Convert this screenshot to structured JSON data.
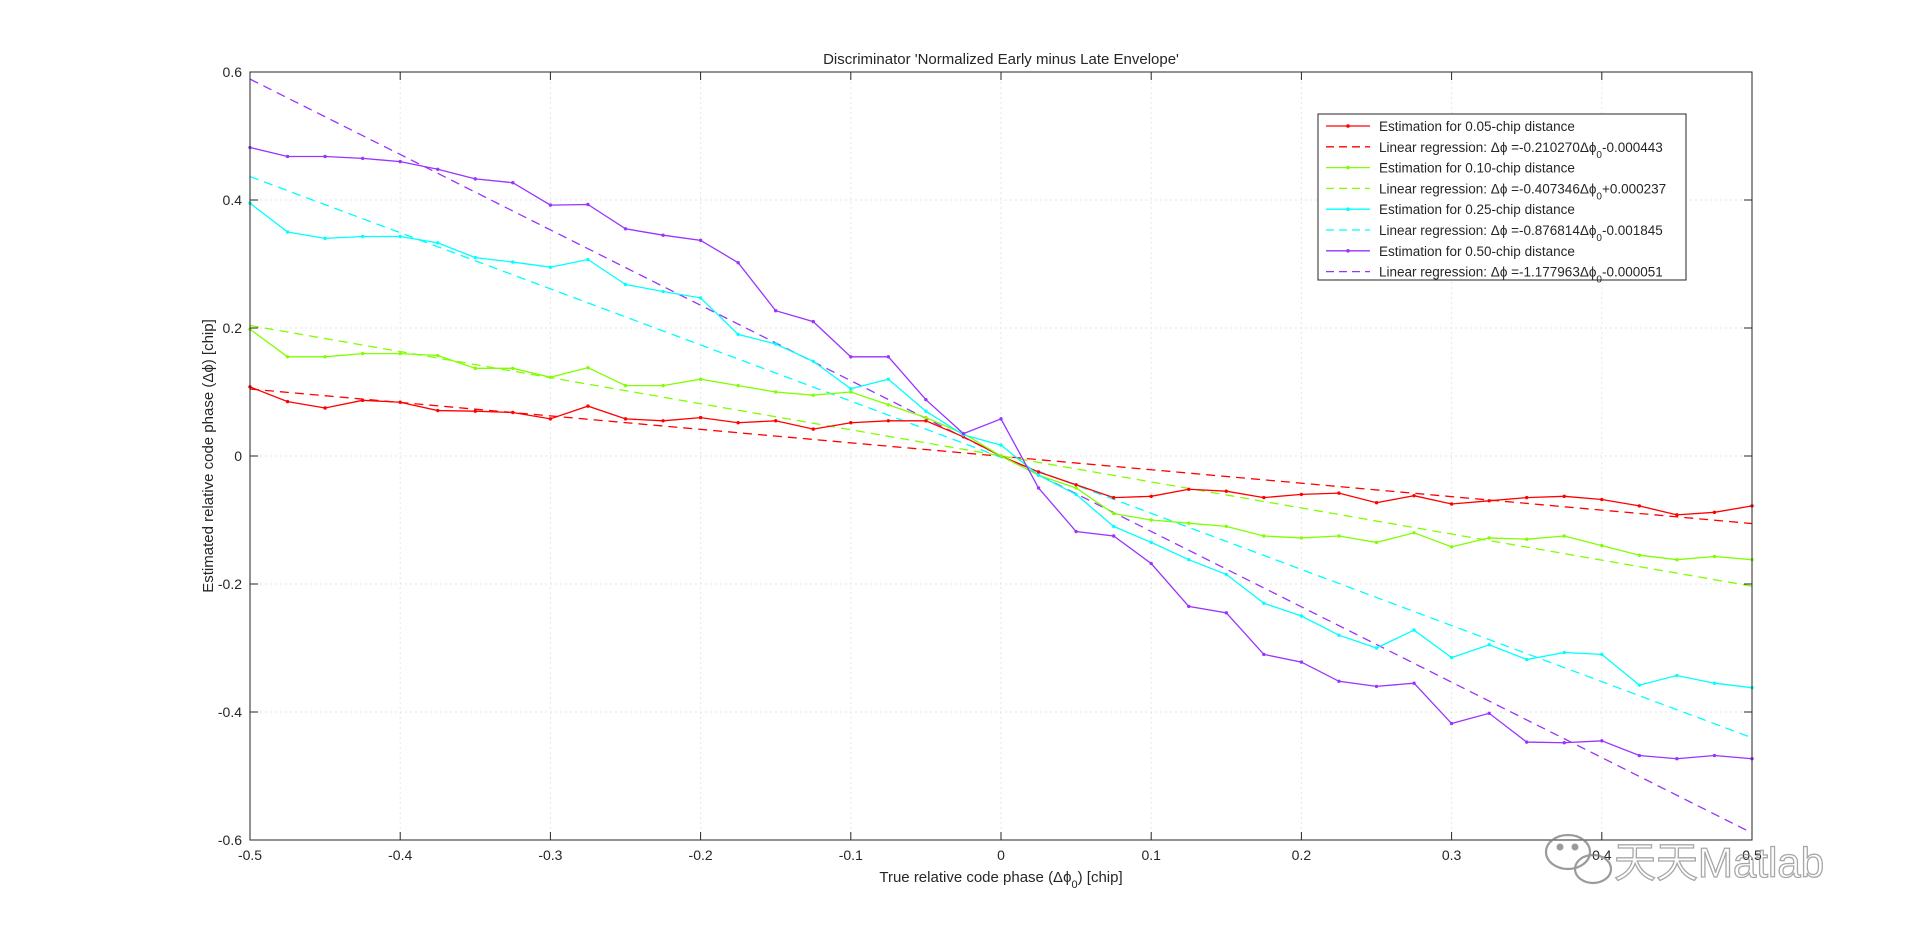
{
  "chart_data": {
    "type": "line",
    "title": "Discriminator 'Normalized Early minus Late Envelope'",
    "xlabel": {
      "prefix": "True relative code phase (Δϕ",
      "sub": "0",
      "suffix": ") [chip]"
    },
    "ylabel": "Estimated relative code phase (Δϕ) [chip]",
    "xlim": [
      -0.5,
      0.5
    ],
    "ylim": [
      -0.6,
      0.6
    ],
    "xticks": [
      -0.5,
      -0.4,
      -0.3,
      -0.2,
      -0.1,
      0,
      0.1,
      0.2,
      0.3,
      0.4,
      0.5
    ],
    "yticks": [
      -0.6,
      -0.4,
      -0.2,
      0,
      0.2,
      0.4,
      0.6
    ],
    "xtick_labels": [
      "-0.5",
      "-0.4",
      "-0.3",
      "-0.2",
      "-0.1",
      "0",
      "0.1",
      "0.2",
      "0.3",
      "0.4",
      "0.5"
    ],
    "ytick_labels": [
      "-0.6",
      "-0.4",
      "-0.2",
      "0",
      "0.2",
      "0.4",
      "0.6"
    ],
    "grid": true,
    "legend_position": "top-right",
    "x": [
      -0.5,
      -0.475,
      -0.45,
      -0.425,
      -0.4,
      -0.375,
      -0.35,
      -0.325,
      -0.3,
      -0.275,
      -0.25,
      -0.225,
      -0.2,
      -0.175,
      -0.15,
      -0.125,
      -0.1,
      -0.075,
      -0.05,
      -0.025,
      0,
      0.025,
      0.05,
      0.075,
      0.1,
      0.125,
      0.15,
      0.175,
      0.2,
      0.225,
      0.25,
      0.275,
      0.3,
      0.325,
      0.35,
      0.375,
      0.4,
      0.425,
      0.45,
      0.475,
      0.5
    ],
    "series": [
      {
        "name": "Estimation for 0.05-chip distance",
        "color": "#ff0000",
        "values": [
          0.108,
          0.085,
          0.075,
          0.087,
          0.084,
          0.071,
          0.07,
          0.068,
          0.058,
          0.078,
          0.058,
          0.055,
          0.06,
          0.052,
          0.055,
          0.042,
          0.052,
          0.055,
          0.055,
          0.03,
          0.0,
          -0.025,
          -0.045,
          -0.065,
          -0.063,
          -0.052,
          -0.055,
          -0.065,
          -0.06,
          -0.058,
          -0.073,
          -0.062,
          -0.075,
          -0.07,
          -0.065,
          -0.063,
          -0.068,
          -0.078,
          -0.092,
          -0.088,
          -0.078
        ]
      },
      {
        "name": "Estimation for 0.10-chip distance",
        "color": "#7fff00",
        "values": [
          0.198,
          0.155,
          0.155,
          0.16,
          0.16,
          0.157,
          0.137,
          0.137,
          0.123,
          0.138,
          0.11,
          0.11,
          0.12,
          0.11,
          0.1,
          0.095,
          0.1,
          0.08,
          0.06,
          0.035,
          0.0,
          -0.03,
          -0.05,
          -0.09,
          -0.1,
          -0.105,
          -0.11,
          -0.125,
          -0.128,
          -0.125,
          -0.135,
          -0.12,
          -0.142,
          -0.128,
          -0.13,
          -0.125,
          -0.14,
          -0.155,
          -0.162,
          -0.157,
          -0.162
        ]
      },
      {
        "name": "Estimation for 0.25-chip distance",
        "color": "#00ffff",
        "values": [
          0.395,
          0.35,
          0.34,
          0.343,
          0.343,
          0.333,
          0.31,
          0.303,
          0.295,
          0.307,
          0.268,
          0.257,
          0.247,
          0.19,
          0.175,
          0.148,
          0.105,
          0.12,
          0.07,
          0.033,
          0.017,
          -0.03,
          -0.06,
          -0.11,
          -0.135,
          -0.162,
          -0.185,
          -0.23,
          -0.25,
          -0.28,
          -0.3,
          -0.272,
          -0.315,
          -0.295,
          -0.318,
          -0.307,
          -0.31,
          -0.358,
          -0.343,
          -0.355,
          -0.362
        ]
      },
      {
        "name": "Estimation for 0.50-chip distance",
        "color": "#9933ff",
        "values": [
          0.482,
          0.468,
          0.468,
          0.465,
          0.46,
          0.448,
          0.433,
          0.427,
          0.392,
          0.393,
          0.355,
          0.345,
          0.337,
          0.302,
          0.227,
          0.21,
          0.155,
          0.155,
          0.088,
          0.035,
          0.058,
          -0.05,
          -0.118,
          -0.125,
          -0.168,
          -0.235,
          -0.245,
          -0.31,
          -0.322,
          -0.352,
          -0.36,
          -0.355,
          -0.418,
          -0.402,
          -0.447,
          -0.448,
          -0.445,
          -0.468,
          -0.473,
          -0.468,
          -0.473
        ]
      }
    ],
    "regressions": [
      {
        "name": "Linear regression: Δϕ =-0.210270Δϕ₀-0.000443",
        "label_prefix": "Linear regression: Δϕ =-0.210270Δϕ",
        "label_sub": "0",
        "label_suffix": "-0.000443",
        "slope": -0.21027,
        "intercept": -0.000443,
        "color": "#ff0000"
      },
      {
        "name": "Linear regression: Δϕ =-0.407346Δϕ₀+0.000237",
        "label_prefix": "Linear regression: Δϕ =-0.407346Δϕ",
        "label_sub": "0",
        "label_suffix": "+0.000237",
        "slope": -0.407346,
        "intercept": 0.000237,
        "color": "#7fff00"
      },
      {
        "name": "Linear regression: Δϕ =-0.876814Δϕ₀-0.001845",
        "label_prefix": "Linear regression: Δϕ =-0.876814Δϕ",
        "label_sub": "0",
        "label_suffix": "-0.001845",
        "slope": -0.876814,
        "intercept": -0.001845,
        "color": "#00ffff"
      },
      {
        "name": "Linear regression: Δϕ =-1.177963Δϕ₀-0.000051",
        "label_prefix": "Linear regression: Δϕ =-1.177963Δϕ",
        "label_sub": "0",
        "label_suffix": "-0.000051",
        "slope": -1.177963,
        "intercept": -5.1e-05,
        "color": "#9933ff"
      }
    ]
  },
  "watermark": {
    "text": "天天Matlab",
    "icon": "wechat-icon"
  }
}
